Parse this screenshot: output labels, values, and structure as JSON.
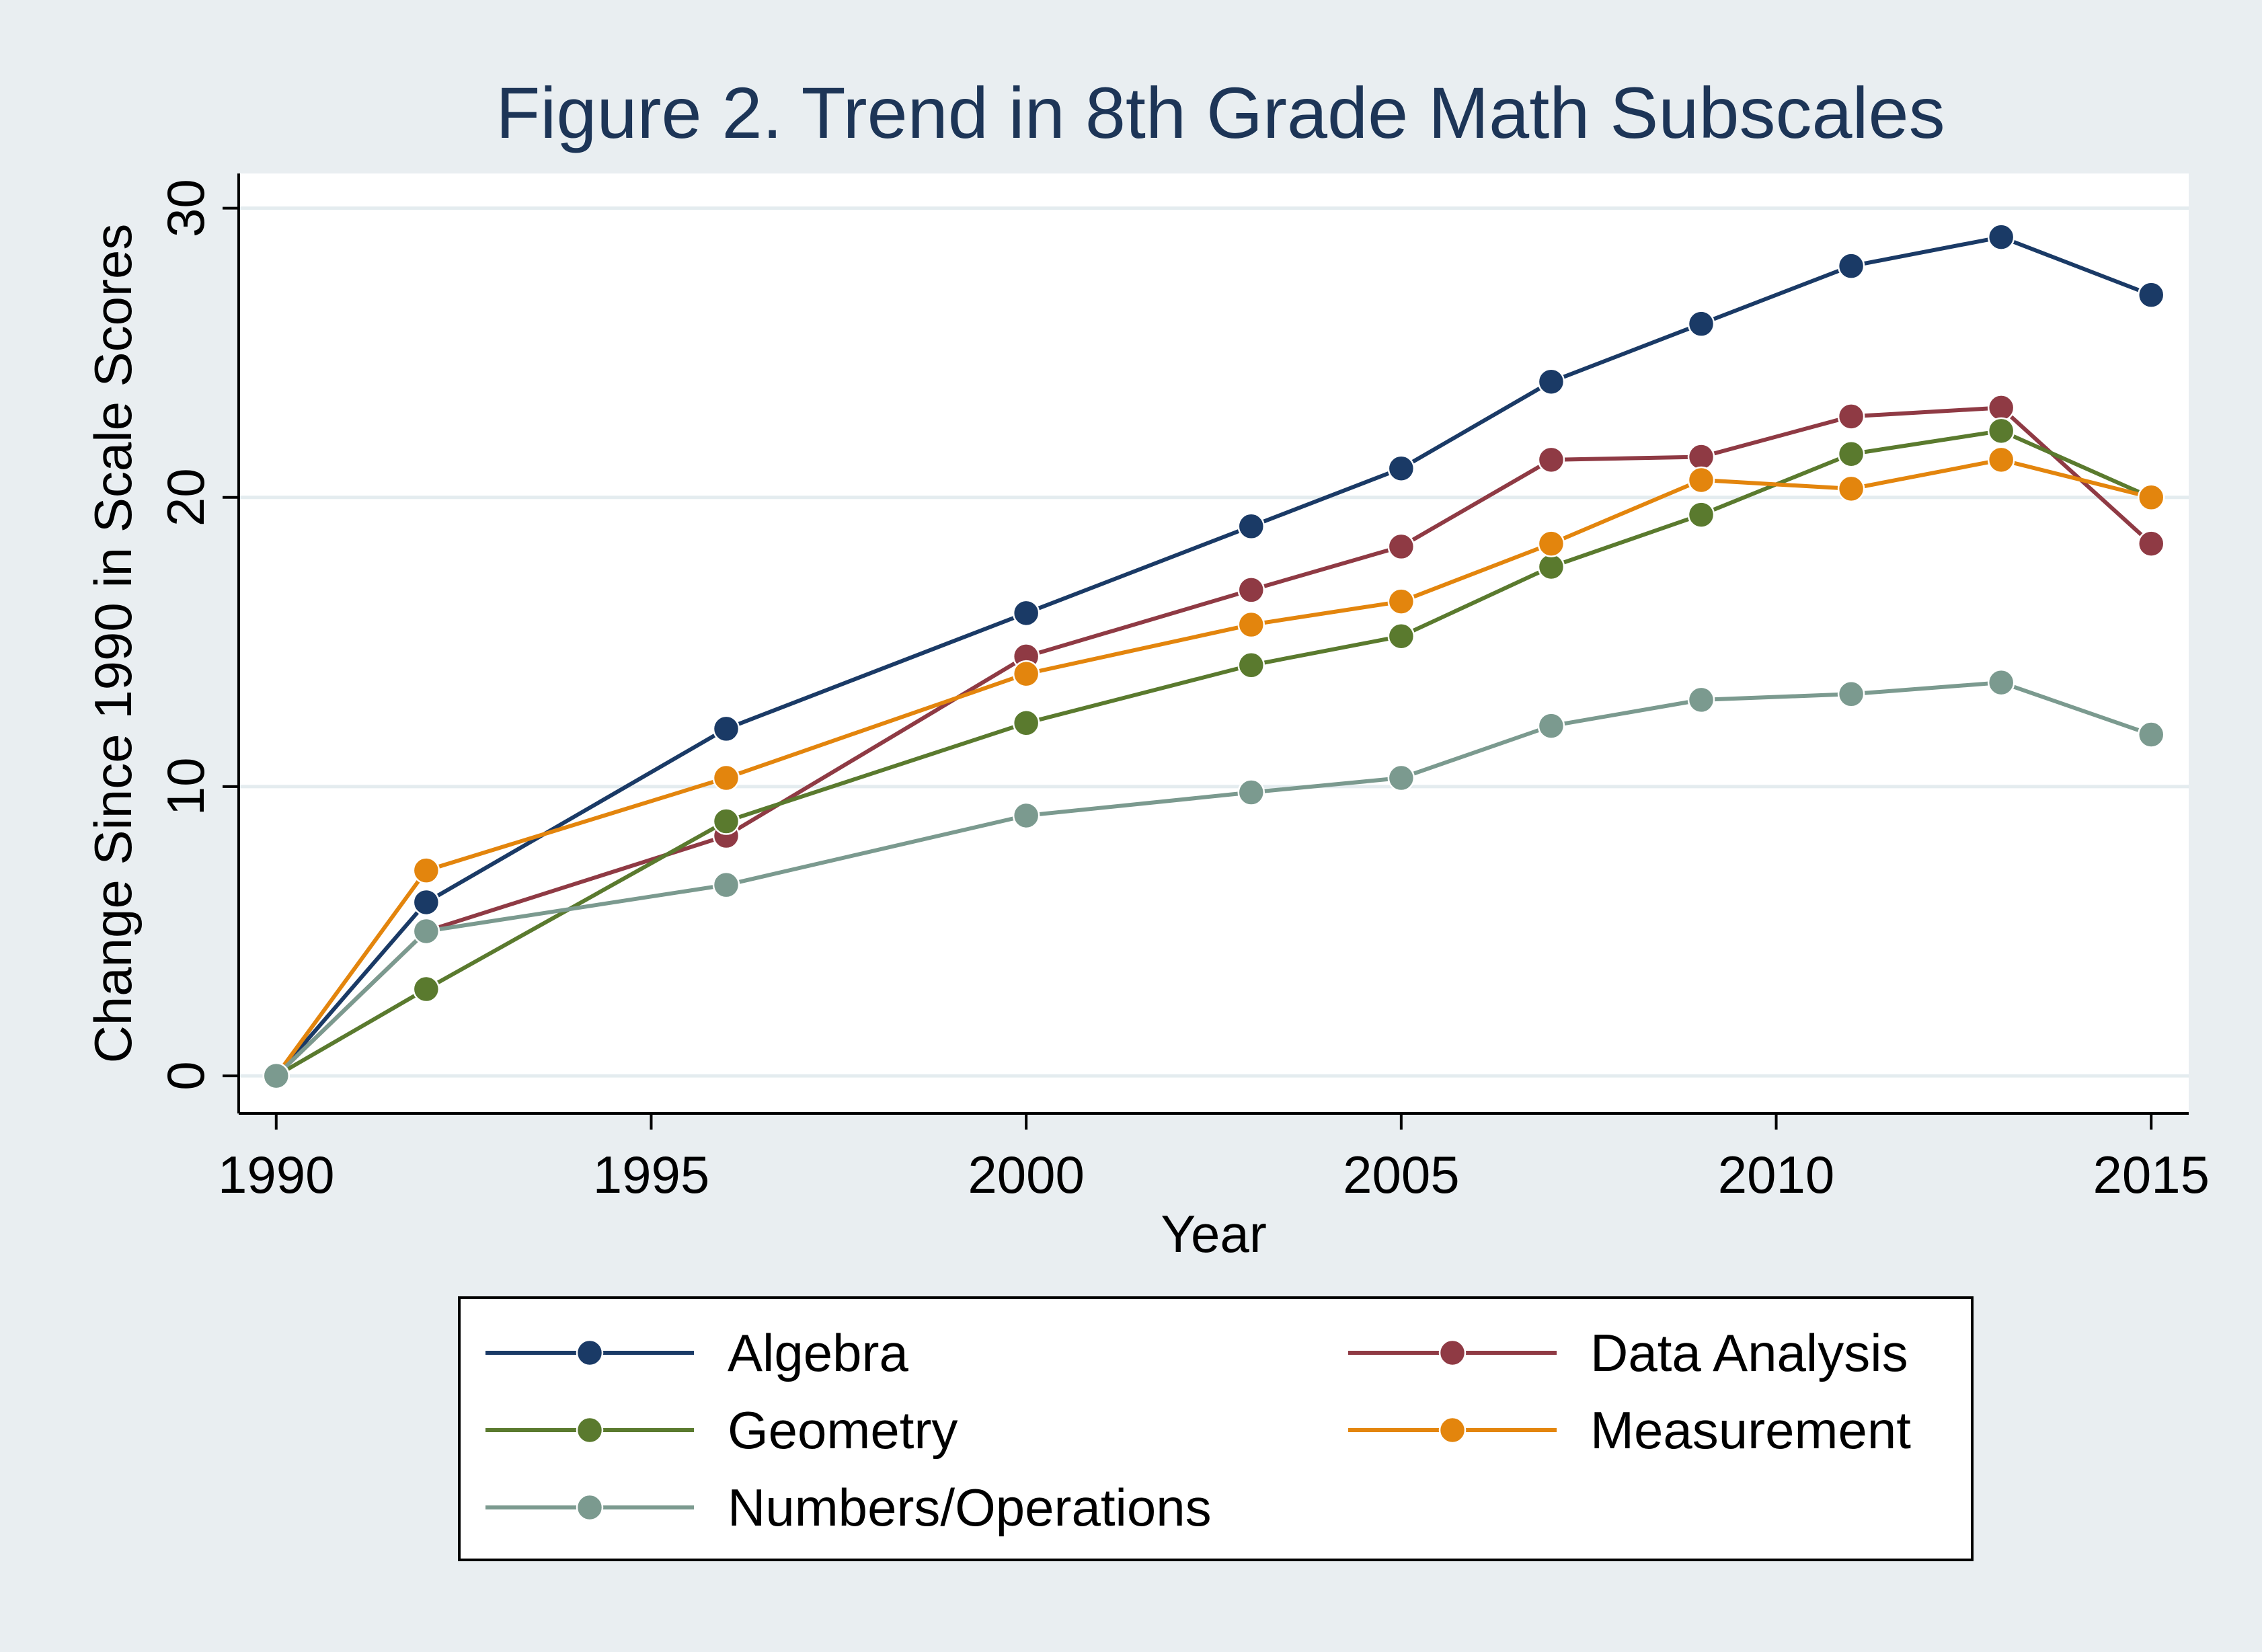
{
  "chart_data": {
    "type": "line",
    "title": "Figure 2. Trend in 8th Grade Math Subscales",
    "xlabel": "Year",
    "ylabel": "Change Since 1990 in Scale Scores",
    "x": [
      1990,
      1992,
      1996,
      2000,
      2003,
      2005,
      2007,
      2009,
      2011,
      2013,
      2015
    ],
    "xlim": [
      1989.5,
      2015.5
    ],
    "ylim": [
      -1.3,
      31.2
    ],
    "xticks": [
      1990,
      1995,
      2000,
      2005,
      2010,
      2015
    ],
    "yticks": [
      0,
      10,
      20,
      30
    ],
    "xtick_labels": [
      "1990",
      "1995",
      "2000",
      "2005",
      "2010",
      "2015"
    ],
    "ytick_labels": [
      "0",
      "10",
      "20",
      "30"
    ],
    "grid": true,
    "legend_position": "bottom",
    "series": [
      {
        "name": "Algebra",
        "color": "#1a3a66",
        "values": [
          0,
          6,
          12,
          16,
          19,
          21,
          24,
          26,
          28,
          29,
          27
        ]
      },
      {
        "name": "Data Analysis",
        "color": "#8f3a44",
        "values": [
          0,
          5,
          8.3,
          14.5,
          16.8,
          18.3,
          21.3,
          21.4,
          22.8,
          23.1,
          18.4
        ]
      },
      {
        "name": "Geometry",
        "color": "#5a7a2e",
        "values": [
          0,
          3,
          8.8,
          12.2,
          14.2,
          15.2,
          17.6,
          19.4,
          21.5,
          22.3,
          20
        ]
      },
      {
        "name": "Measurement",
        "color": "#e3850d",
        "values": [
          0,
          7.1,
          10.3,
          13.9,
          15.6,
          16.4,
          18.4,
          20.6,
          20.3,
          21.3,
          20
        ]
      },
      {
        "name": "Numbers/Operations",
        "color": "#7b9a8f",
        "values": [
          0,
          5,
          6.6,
          9,
          9.8,
          10.3,
          12.1,
          13,
          13.2,
          13.6,
          11.8
        ]
      }
    ]
  }
}
